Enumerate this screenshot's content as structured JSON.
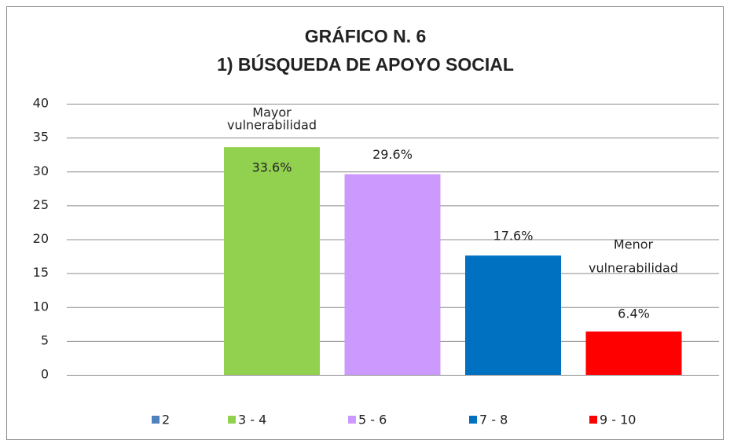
{
  "chart_data": {
    "type": "bar",
    "title": [
      "GRÁFICO N. 6",
      "1) BÚSQUEDA DE APOYO SOCIAL"
    ],
    "categories": [
      "2",
      "3 -  4",
      "5 - 6",
      "7 - 8",
      "9 - 10"
    ],
    "values": [
      null,
      33.6,
      29.6,
      17.6,
      6.4
    ],
    "value_labels": [
      null,
      "33.6%",
      "29.6%",
      "17.6%",
      "6.4%"
    ],
    "colors": [
      "#4f81bd",
      "#92d050",
      "#cc99ff",
      "#0070c0",
      "#ff0000"
    ],
    "annotations": [
      [
        "Mayor",
        "vulnerabilidad"
      ],
      [
        "Menor",
        "vulnerabilidad"
      ]
    ],
    "ylim": [
      0,
      40
    ],
    "yticks": [
      0,
      5,
      10,
      15,
      20,
      25,
      30,
      35,
      40
    ],
    "grid": true,
    "legend": "bottom"
  }
}
